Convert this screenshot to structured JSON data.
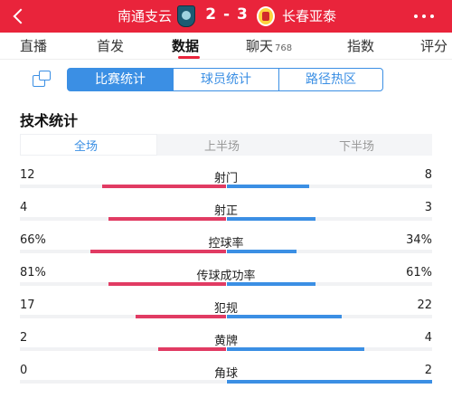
{
  "match": {
    "home_team": "南通支云",
    "score": "2 - 3",
    "away_team": "长春亚泰"
  },
  "tabs": [
    {
      "label": "直播"
    },
    {
      "label": "首发"
    },
    {
      "label": "数据",
      "active": true
    },
    {
      "label": "聊天",
      "count": "768"
    },
    {
      "label": "指数"
    },
    {
      "label": "评分"
    }
  ],
  "subtabs": [
    "比赛统计",
    "球员统计",
    "路径热区"
  ],
  "section_title": "技术统计",
  "periods": [
    "全场",
    "上半场",
    "下半场"
  ],
  "stats": [
    {
      "name": "射门",
      "home": "12",
      "away": "8",
      "home_fraction": 0.6,
      "away_fraction": 0.4
    },
    {
      "name": "射正",
      "home": "4",
      "away": "3",
      "home_fraction": 0.57,
      "away_fraction": 0.43
    },
    {
      "name": "控球率",
      "home": "66%",
      "away": "34%",
      "home_fraction": 0.66,
      "away_fraction": 0.34
    },
    {
      "name": "传球成功率",
      "home": "81%",
      "away": "61%",
      "home_fraction": 0.57,
      "away_fraction": 0.43
    },
    {
      "name": "犯规",
      "home": "17",
      "away": "22",
      "home_fraction": 0.44,
      "away_fraction": 0.56
    },
    {
      "name": "黄牌",
      "home": "2",
      "away": "4",
      "home_fraction": 0.33,
      "away_fraction": 0.67
    },
    {
      "name": "角球",
      "home": "0",
      "away": "2",
      "home_fraction": 0.0,
      "away_fraction": 1.0
    }
  ],
  "colors": {
    "header_red": "#e9243b",
    "home_bar": "#e13b63",
    "away_bar": "#3b8fe4"
  }
}
